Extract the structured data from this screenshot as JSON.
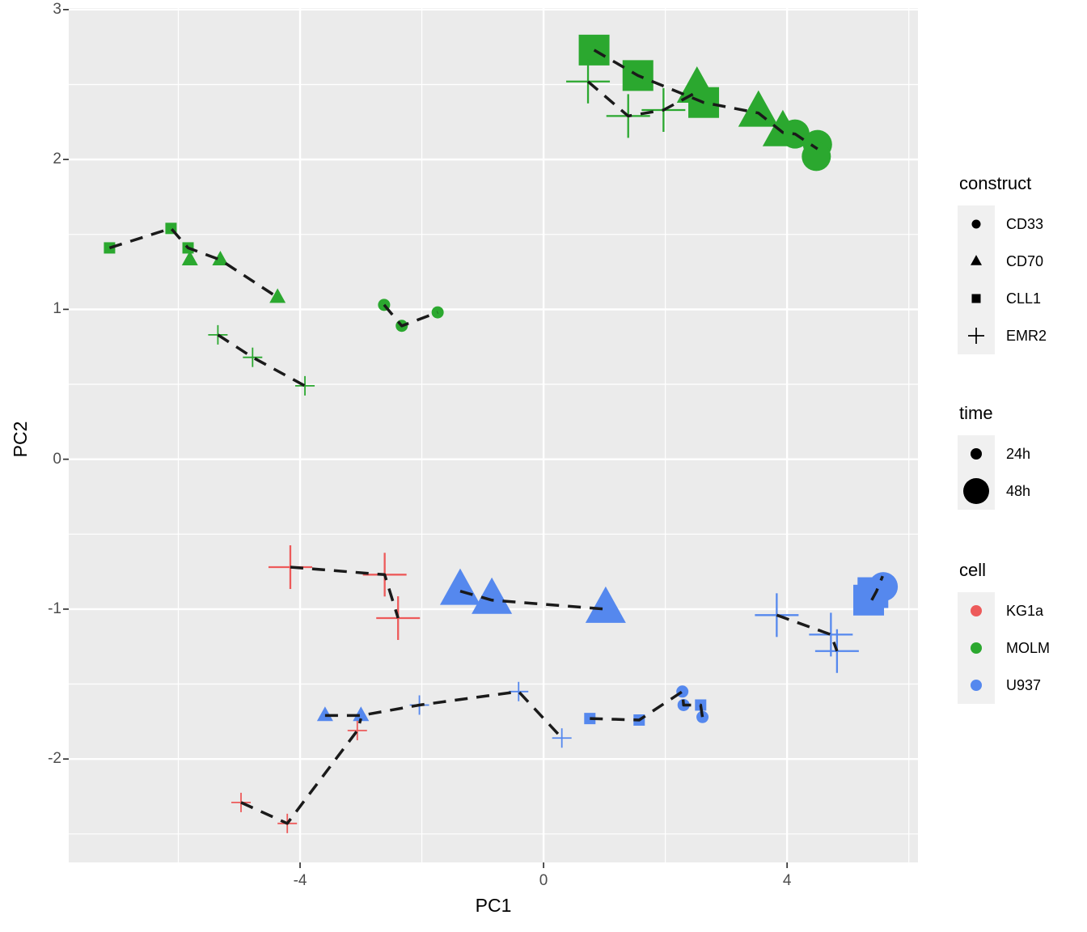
{
  "colors": {
    "panel_bg": "#EBEBEB",
    "grid": "#FFFFFF",
    "dash": "#1A1A1A",
    "tick_mark": "#333333",
    "tick_label": "#4D4D4D",
    "legend_key_bg": "#F0F0F0",
    "KG1a": "#ED5A5A",
    "MOLM": "#2BA82F",
    "U937": "#5588EE"
  },
  "axes": {
    "x": {
      "label": "PC1",
      "ticks": [
        {
          "label": "-4",
          "value": -4
        },
        {
          "label": "0",
          "value": 0
        },
        {
          "label": "4",
          "value": 4
        }
      ]
    },
    "y": {
      "label": "PC2",
      "ticks": [
        {
          "label": "3",
          "value": 3
        },
        {
          "label": "2",
          "value": 2
        },
        {
          "label": "1",
          "value": 1
        },
        {
          "label": "0",
          "value": 0
        },
        {
          "label": "-1",
          "value": -1
        },
        {
          "label": "-2",
          "value": -2
        }
      ]
    }
  },
  "legends": {
    "construct": {
      "title": "construct",
      "items": [
        {
          "label": "CD33",
          "shape": "circle"
        },
        {
          "label": "CD70",
          "shape": "triangle"
        },
        {
          "label": "CLL1",
          "shape": "square"
        },
        {
          "label": "EMR2",
          "shape": "plus"
        }
      ]
    },
    "time": {
      "title": "time",
      "items": [
        {
          "label": "24h",
          "size": "24h"
        },
        {
          "label": "48h",
          "size": "48h"
        }
      ]
    },
    "cell": {
      "title": "cell",
      "items": [
        {
          "label": "KG1a",
          "color": "#ED5A5A"
        },
        {
          "label": "MOLM",
          "color": "#2BA82F"
        },
        {
          "label": "U937",
          "color": "#5588EE"
        }
      ]
    }
  },
  "chart_data": {
    "type": "scatter",
    "title": "",
    "xlabel": "PC1",
    "ylabel": "PC2",
    "xlim": [
      -7.8,
      6.15
    ],
    "ylim": [
      -2.69,
      3.01
    ],
    "x_major": [
      -4,
      0,
      4
    ],
    "x_minor": [
      -6,
      -2,
      2,
      6
    ],
    "y_major": [
      -2,
      -1,
      0,
      1,
      2,
      3
    ],
    "y_minor": [
      -2.5,
      -1.5,
      -0.5,
      0.5,
      1.5,
      2.5
    ],
    "marker_sizes": {
      "24h": {
        "circle_r": 7.5,
        "square": 14,
        "triangle_w": 20,
        "plus_half": 12,
        "plus_stroke": 1.8
      },
      "48h": {
        "circle_r": 18,
        "square": 38,
        "triangle_w": 50,
        "plus_half": 27,
        "plus_stroke": 2.3
      }
    },
    "series": [
      {
        "cell": "MOLM",
        "time": "24h",
        "construct": "CLL1",
        "points": [
          [
            -7.13,
            1.41
          ],
          [
            -6.12,
            1.54
          ],
          [
            -5.84,
            1.41
          ]
        ]
      },
      {
        "cell": "MOLM",
        "time": "24h",
        "construct": "CD70",
        "points": [
          [
            -5.81,
            1.33
          ],
          [
            -5.31,
            1.33
          ],
          [
            -4.37,
            1.08
          ]
        ]
      },
      {
        "cell": "MOLM",
        "time": "24h",
        "construct": "EMR2",
        "points": [
          [
            -5.35,
            0.83
          ],
          [
            -4.78,
            0.68
          ],
          [
            -3.92,
            0.49
          ]
        ]
      },
      {
        "cell": "MOLM",
        "time": "24h",
        "construct": "CD33",
        "points": [
          [
            -2.62,
            1.03
          ],
          [
            -2.33,
            0.89
          ],
          [
            -1.74,
            0.98
          ]
        ]
      },
      {
        "cell": "MOLM",
        "time": "48h",
        "construct": "CLL1",
        "points": [
          [
            0.83,
            2.73
          ],
          [
            1.55,
            2.56
          ],
          [
            2.63,
            2.38
          ]
        ]
      },
      {
        "cell": "MOLM",
        "time": "48h",
        "construct": "EMR2",
        "points": [
          [
            0.73,
            2.52
          ],
          [
            1.39,
            2.29
          ],
          [
            1.97,
            2.33
          ]
        ]
      },
      {
        "cell": "MOLM",
        "time": "48h",
        "construct": "CD70",
        "points": [
          [
            2.52,
            2.47
          ],
          [
            3.53,
            2.31
          ],
          [
            3.93,
            2.18
          ]
        ]
      },
      {
        "cell": "MOLM",
        "time": "48h",
        "construct": "CD33",
        "points": [
          [
            4.13,
            2.17
          ],
          [
            4.5,
            2.1
          ],
          [
            4.48,
            2.02
          ]
        ]
      },
      {
        "cell": "KG1a",
        "time": "48h",
        "construct": "EMR2",
        "points": [
          [
            -4.16,
            -0.72
          ],
          [
            -2.61,
            -0.77
          ],
          [
            -2.39,
            -1.06
          ]
        ]
      },
      {
        "cell": "KG1a",
        "time": "24h",
        "construct": "EMR2",
        "points": [
          [
            -4.97,
            -2.29
          ],
          [
            -4.21,
            -2.43
          ],
          [
            -3.06,
            -1.81
          ]
        ]
      },
      {
        "cell": "U937",
        "time": "48h",
        "construct": "CD70",
        "points": [
          [
            -1.37,
            -0.88
          ],
          [
            -0.85,
            -0.94
          ],
          [
            1.02,
            -1.0
          ]
        ]
      },
      {
        "cell": "U937",
        "time": "48h",
        "construct": "EMR2",
        "points": [
          [
            3.83,
            -1.04
          ],
          [
            4.72,
            -1.17
          ],
          [
            4.82,
            -1.28
          ]
        ]
      },
      {
        "cell": "U937",
        "time": "48h",
        "construct": "CLL1",
        "points": [
          [
            5.34,
            -0.94
          ],
          [
            5.41,
            -0.89
          ]
        ]
      },
      {
        "cell": "U937",
        "time": "48h",
        "construct": "CD33",
        "points": [
          [
            5.58,
            -0.85
          ]
        ]
      },
      {
        "cell": "U937",
        "time": "24h",
        "construct": "CD70",
        "points": [
          [
            -3.59,
            -1.71
          ],
          [
            -3.0,
            -1.71
          ]
        ]
      },
      {
        "cell": "U937",
        "time": "24h",
        "construct": "EMR2",
        "points": [
          [
            -2.04,
            -1.64
          ],
          [
            -0.41,
            -1.55
          ],
          [
            0.3,
            -1.86
          ]
        ]
      },
      {
        "cell": "U937",
        "time": "24h",
        "construct": "CLL1",
        "points": [
          [
            0.76,
            -1.73
          ],
          [
            1.57,
            -1.74
          ],
          [
            2.58,
            -1.64
          ]
        ]
      },
      {
        "cell": "U937",
        "time": "24h",
        "construct": "CD33",
        "points": [
          [
            2.28,
            -1.55
          ],
          [
            2.3,
            -1.64
          ],
          [
            2.61,
            -1.72
          ]
        ]
      }
    ],
    "dash_paths": [
      [
        [
          0.83,
          2.73
        ],
        [
          1.55,
          2.56
        ],
        [
          2.63,
          2.38
        ],
        [
          3.53,
          2.31
        ],
        [
          3.93,
          2.18
        ],
        [
          4.13,
          2.17
        ],
        [
          4.5,
          2.07
        ]
      ],
      [
        [
          0.73,
          2.52
        ],
        [
          1.39,
          2.29
        ],
        [
          1.97,
          2.33
        ],
        [
          2.52,
          2.45
        ]
      ],
      [
        [
          -7.13,
          1.41
        ],
        [
          -6.12,
          1.54
        ],
        [
          -5.84,
          1.41
        ],
        [
          -5.31,
          1.33
        ],
        [
          -4.37,
          1.08
        ]
      ],
      [
        [
          -5.35,
          0.83
        ],
        [
          -4.78,
          0.68
        ],
        [
          -3.92,
          0.49
        ]
      ],
      [
        [
          -2.62,
          1.03
        ],
        [
          -2.33,
          0.89
        ],
        [
          -1.74,
          0.98
        ]
      ],
      [
        [
          -4.16,
          -0.72
        ],
        [
          -2.61,
          -0.77
        ],
        [
          -2.39,
          -1.06
        ]
      ],
      [
        [
          -4.97,
          -2.29
        ],
        [
          -4.21,
          -2.43
        ],
        [
          -3.06,
          -1.81
        ],
        [
          -3.0,
          -1.73
        ]
      ],
      [
        [
          -1.37,
          -0.88
        ],
        [
          -0.85,
          -0.94
        ],
        [
          1.02,
          -1.0
        ]
      ],
      [
        [
          3.83,
          -1.04
        ],
        [
          4.72,
          -1.17
        ],
        [
          4.82,
          -1.28
        ]
      ],
      [
        [
          5.39,
          -0.94
        ],
        [
          5.47,
          -0.88
        ],
        [
          5.57,
          -0.78
        ]
      ],
      [
        [
          -3.59,
          -1.71
        ],
        [
          -3.0,
          -1.71
        ],
        [
          -2.04,
          -1.64
        ],
        [
          -0.41,
          -1.55
        ],
        [
          0.3,
          -1.86
        ]
      ],
      [
        [
          0.76,
          -1.73
        ],
        [
          1.57,
          -1.74
        ],
        [
          2.28,
          -1.55
        ],
        [
          2.3,
          -1.64
        ],
        [
          2.58,
          -1.64
        ],
        [
          2.61,
          -1.72
        ]
      ]
    ]
  }
}
